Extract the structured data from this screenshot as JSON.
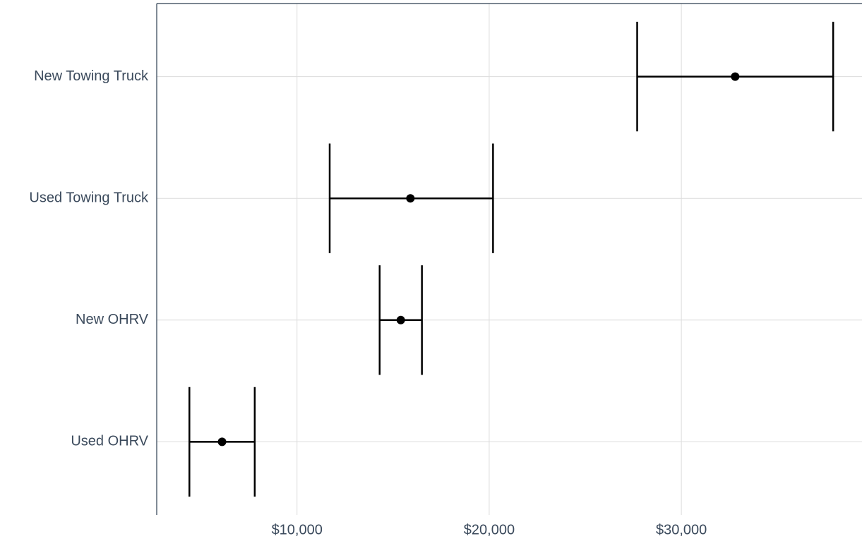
{
  "chart_data": {
    "type": "errorbar",
    "categories": [
      "New Towing Truck",
      "Used Towing Truck",
      "New OHRV",
      "Used OHRV"
    ],
    "values": [
      32800,
      15900,
      15400,
      6100
    ],
    "lower": [
      27700,
      11700,
      14300,
      4400
    ],
    "upper": [
      37900,
      20200,
      16500,
      7800
    ],
    "color": "#000000",
    "xlim": [
      2700,
      39400
    ],
    "xticks": [
      {
        "value": 10000,
        "label": "$10,000"
      },
      {
        "value": 20000,
        "label": "$20,000"
      },
      {
        "value": 30000,
        "label": "$30,000"
      }
    ],
    "grid": true
  }
}
